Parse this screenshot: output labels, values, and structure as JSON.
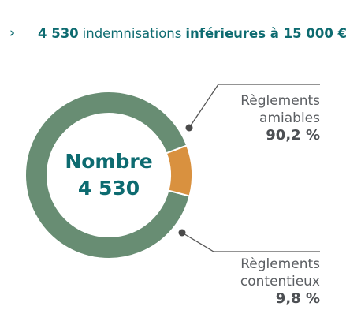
{
  "headline": {
    "chevron": "›",
    "count": "4 530",
    "middle": "indemnisations",
    "emphasis": "inférieures à 15 000 €"
  },
  "center": {
    "title": "Nombre",
    "value": "4 530"
  },
  "callouts": {
    "amiables": {
      "line1": "Règlements",
      "line2": "amiables",
      "pct": "90,2 %"
    },
    "contentieux": {
      "line1": "Règlements",
      "line2": "contentieux",
      "pct": "9,8 %"
    }
  },
  "colors": {
    "amiables": "#688d73",
    "contentieux": "#d9913f",
    "accent_text": "#0d6b70",
    "leader": "#555555"
  },
  "chart_data": {
    "type": "pie",
    "style": "donut",
    "categories": [
      "Règlements amiables",
      "Règlements contentieux"
    ],
    "values": [
      90.2,
      9.8
    ],
    "unit": "%",
    "total_label": "Nombre",
    "total_value": "4 530"
  }
}
